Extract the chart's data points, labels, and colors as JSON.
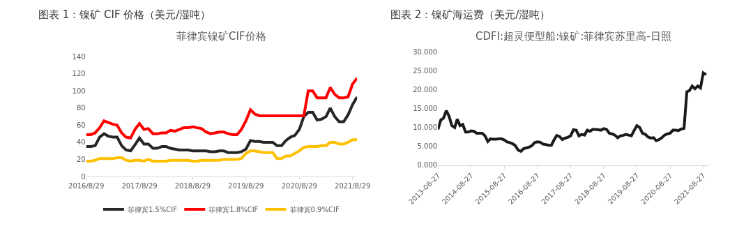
{
  "chart_data": [
    {
      "type": "line",
      "title": "图表 1：镍矿 CIF 价格（美元/湿吨）",
      "subtitle": "菲律宾镍矿CIF价格",
      "x": [
        "2016-08-29",
        "2016-09-29",
        "2016-10-29",
        "2016-11-29",
        "2016-12-29",
        "2017-01-29",
        "2017-02-28",
        "2017-03-29",
        "2017-04-29",
        "2017-05-29",
        "2017-06-29",
        "2017-07-29",
        "2017-08-29",
        "2017-09-29",
        "2017-10-29",
        "2017-11-29",
        "2017-12-29",
        "2018-01-29",
        "2018-02-28",
        "2018-03-29",
        "2018-04-29",
        "2018-05-29",
        "2018-06-29",
        "2018-07-29",
        "2018-08-29",
        "2018-09-29",
        "2018-10-29",
        "2018-11-29",
        "2018-12-29",
        "2019-01-29",
        "2019-02-28",
        "2019-03-29",
        "2019-04-29",
        "2019-05-29",
        "2019-06-29",
        "2019-07-29",
        "2019-08-29",
        "2019-09-29",
        "2019-10-29",
        "2019-11-29",
        "2019-12-29",
        "2020-01-29",
        "2020-02-29",
        "2020-03-29",
        "2020-04-29",
        "2020-05-29",
        "2020-06-29",
        "2020-07-29",
        "2020-08-29",
        "2020-09-29",
        "2020-10-29",
        "2020-11-29",
        "2020-12-29",
        "2021-01-29",
        "2021-02-28",
        "2021-03-29",
        "2021-04-29",
        "2021-05-29",
        "2021-06-29",
        "2021-07-29",
        "2021-08-29",
        "2021-09-29"
      ],
      "series": [
        {
          "name": "菲律宾1.5%CIF",
          "color": "#262626",
          "values": [
            35,
            35,
            36,
            46,
            50,
            47,
            46,
            46,
            36,
            31,
            30,
            37,
            45,
            38,
            38,
            33,
            33,
            35,
            35,
            33,
            32,
            31,
            31,
            31,
            30,
            30,
            30,
            30,
            29,
            29,
            30,
            30,
            28,
            28,
            28,
            29,
            32,
            42,
            41,
            41,
            40,
            40,
            40,
            36,
            36,
            42,
            46,
            48,
            55,
            70,
            75,
            75,
            66,
            67,
            70,
            80,
            70,
            64,
            64,
            72,
            84,
            93
          ]
        },
        {
          "name": "菲律宾1.8%CIF",
          "color": "#ff0000",
          "values": [
            49,
            49,
            51,
            57,
            65,
            63,
            61,
            60,
            51,
            46,
            45,
            55,
            62,
            55,
            56,
            50,
            50,
            51,
            51,
            54,
            53,
            55,
            57,
            57,
            58,
            57,
            56,
            52,
            50,
            51,
            52,
            52,
            50,
            49,
            49,
            55,
            65,
            78,
            73,
            71,
            71,
            71,
            71,
            71,
            71,
            71,
            71,
            71,
            71,
            71,
            100,
            100,
            92,
            92,
            92,
            104,
            96,
            92,
            92,
            93,
            108,
            115
          ]
        },
        {
          "name": "菲律宾0.9%CIF",
          "color": "#ffc000",
          "values": [
            18,
            18,
            19,
            21,
            21,
            21,
            21,
            22,
            22,
            19,
            18,
            19,
            19,
            18,
            20,
            18,
            18,
            18,
            18,
            19,
            19,
            19,
            19,
            19,
            18,
            18,
            19,
            19,
            19,
            19,
            19,
            20,
            20,
            20,
            20,
            21,
            27,
            30,
            30,
            29,
            28,
            28,
            28,
            21,
            21,
            24,
            24,
            27,
            30,
            34,
            35,
            35,
            35,
            36,
            36,
            40,
            40,
            38,
            38,
            40,
            43,
            43
          ]
        }
      ],
      "xlim": [
        "2016-08-29",
        "2021-09-29"
      ],
      "xticks": [
        {
          "value": "2016-08-29",
          "label": "2016/8/29"
        },
        {
          "value": "2017-08-29",
          "label": "2017/8/29"
        },
        {
          "value": "2018-08-29",
          "label": "2018/8/29"
        },
        {
          "value": "2019-08-29",
          "label": "2019/8/29"
        },
        {
          "value": "2020-08-29",
          "label": "2020/8/29"
        },
        {
          "value": "2021-08-29",
          "label": "2021/8/29"
        }
      ],
      "ylim": [
        0,
        140
      ],
      "yticks": [
        0,
        20,
        40,
        60,
        80,
        100,
        120,
        140
      ],
      "legend": "bottom",
      "marker": "none",
      "line_style": "solid"
    },
    {
      "type": "line",
      "title": "图表 2：镍矿海运费（美元/湿吨）",
      "subtitle": "CDFI:超灵便型船:镍矿:菲律宾苏里高-日照",
      "x": [
        "2013-08-27",
        "2013-09-27",
        "2013-10-27",
        "2013-11-27",
        "2013-12-27",
        "2014-01-27",
        "2014-02-27",
        "2014-03-27",
        "2014-04-27",
        "2014-05-27",
        "2014-06-27",
        "2014-07-27",
        "2014-08-27",
        "2014-09-27",
        "2014-10-27",
        "2014-11-27",
        "2014-12-27",
        "2015-01-27",
        "2015-02-27",
        "2015-03-27",
        "2015-04-27",
        "2015-05-27",
        "2015-06-27",
        "2015-07-27",
        "2015-08-27",
        "2015-09-27",
        "2015-10-27",
        "2015-11-27",
        "2015-12-27",
        "2016-01-27",
        "2016-02-27",
        "2016-03-27",
        "2016-04-27",
        "2016-05-27",
        "2016-06-27",
        "2016-07-27",
        "2016-08-27",
        "2016-09-27",
        "2016-10-27",
        "2016-11-27",
        "2016-12-27",
        "2017-01-27",
        "2017-02-27",
        "2017-03-27",
        "2017-04-27",
        "2017-05-27",
        "2017-06-27",
        "2017-07-27",
        "2017-08-27",
        "2017-09-27",
        "2017-10-27",
        "2017-11-27",
        "2017-12-27",
        "2018-01-27",
        "2018-02-27",
        "2018-03-27",
        "2018-04-27",
        "2018-05-27",
        "2018-06-27",
        "2018-07-27",
        "2018-08-27",
        "2018-09-27",
        "2018-10-27",
        "2018-11-27",
        "2018-12-27",
        "2019-01-27",
        "2019-02-27",
        "2019-03-27",
        "2019-04-27",
        "2019-05-27",
        "2019-06-27",
        "2019-07-27",
        "2019-08-27",
        "2019-09-27",
        "2019-10-27",
        "2019-11-27",
        "2019-12-27",
        "2020-01-27",
        "2020-02-27",
        "2020-03-27",
        "2020-04-27",
        "2020-05-27",
        "2020-06-27",
        "2020-07-27",
        "2020-08-27",
        "2020-09-27",
        "2020-10-27",
        "2020-11-27",
        "2020-12-27",
        "2021-01-27",
        "2021-02-27",
        "2021-03-27",
        "2021-04-27",
        "2021-05-27",
        "2021-06-27",
        "2021-07-27",
        "2021-08-27",
        "2021-09-27"
      ],
      "series": [
        {
          "color": "#1a1a1a",
          "values": [
            9.5,
            12,
            12.5,
            14.5,
            13,
            10.5,
            10,
            12.2,
            10.5,
            10.8,
            8.8,
            8.8,
            9.1,
            9,
            8.5,
            8.5,
            8.5,
            7.8,
            6.3,
            7,
            6.9,
            6.9,
            7,
            7,
            6.7,
            6.2,
            6,
            5.7,
            5.2,
            4,
            3.7,
            4.4,
            4.6,
            4.8,
            5.2,
            6,
            6.2,
            6.1,
            5.6,
            5.5,
            5.3,
            5.3,
            6.8,
            7.9,
            7.6,
            6.8,
            7.2,
            7.4,
            7.8,
            9.4,
            9.3,
            7.8,
            8.2,
            8,
            9.3,
            9,
            9.5,
            9.5,
            9.4,
            9.3,
            9.7,
            9.5,
            8.5,
            8.3,
            8,
            7.3,
            7.8,
            7.9,
            8.2,
            8,
            7.8,
            9.2,
            10.5,
            10,
            8.5,
            8.2,
            7.5,
            7.2,
            7.3,
            6.5,
            6.8,
            7.3,
            8,
            8.3,
            8.5,
            9.3,
            9.3,
            9.2,
            9.6,
            9.8,
            19.5,
            19.8,
            21,
            20.3,
            21,
            20.5,
            24.5,
            24
          ]
        }
      ],
      "xlim": [
        "2013-08-27",
        "2021-10-27"
      ],
      "xticks": [
        {
          "value": "2013-08-27",
          "label": "2013-08-27"
        },
        {
          "value": "2014-08-27",
          "label": "2014-08-27"
        },
        {
          "value": "2015-08-27",
          "label": "2015-08-27"
        },
        {
          "value": "2016-08-27",
          "label": "2016-08-27"
        },
        {
          "value": "2017-08-27",
          "label": "2017-08-27"
        },
        {
          "value": "2018-08-27",
          "label": "2018-08-27"
        },
        {
          "value": "2019-08-27",
          "label": "2019-08-27"
        },
        {
          "value": "2020-08-27",
          "label": "2020-08-27"
        },
        {
          "value": "2021-08-27",
          "label": "2021-08-27"
        }
      ],
      "ylim": [
        0,
        30
      ],
      "yticks": [
        {
          "value": 0,
          "label": "0.000"
        },
        {
          "value": 5,
          "label": "5.000"
        },
        {
          "value": 10,
          "label": "10.000"
        },
        {
          "value": 15,
          "label": "15.000"
        },
        {
          "value": 20,
          "label": "20.000"
        },
        {
          "value": 25,
          "label": "25.000"
        },
        {
          "value": 30,
          "label": "30.000"
        }
      ],
      "legend": false,
      "marker": "none",
      "line_style": "solid"
    }
  ]
}
